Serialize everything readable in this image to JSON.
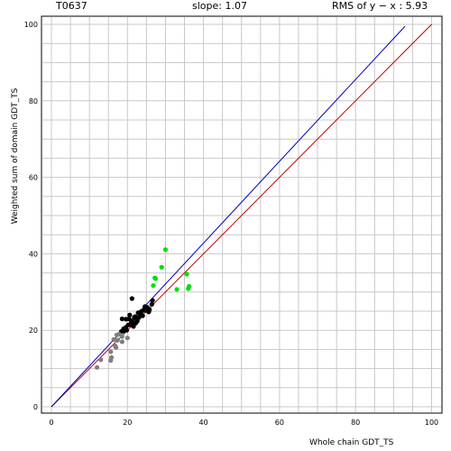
{
  "header": {
    "target": "T0637",
    "slope": "slope: 1.07",
    "rms": "RMS of  y − x : 5.93"
  },
  "chart_data": {
    "type": "scatter",
    "title": "",
    "xlabel": "Whole chain GDT_TS",
    "ylabel": "Weighted sum of domain GDT_TS",
    "xlim": [
      0,
      100
    ],
    "ylim": [
      0,
      100
    ],
    "grid": true,
    "xticks": [
      "0",
      "20",
      "40",
      "60",
      "80",
      "100"
    ],
    "yticks": [
      "0",
      "20",
      "40",
      "60",
      "80",
      "100"
    ],
    "lines": [
      {
        "kind": "identity",
        "color": "#c00000",
        "from": [
          0,
          0
        ],
        "to": [
          100,
          100
        ]
      },
      {
        "kind": "fit",
        "color": "#0000c0",
        "slope": 1.07,
        "from": [
          0,
          0
        ],
        "to": [
          93,
          99.5
        ]
      }
    ],
    "series": [
      {
        "color": "#000000",
        "points": [
          [
            21.2,
            28.3
          ],
          [
            26.6,
            27.8
          ],
          [
            25.2,
            26.0
          ],
          [
            24.4,
            25.5
          ],
          [
            24.8,
            25.2
          ],
          [
            23.6,
            24.9
          ],
          [
            22.8,
            24.6
          ],
          [
            25.6,
            24.8
          ],
          [
            23.4,
            24.2
          ],
          [
            22.0,
            23.6
          ],
          [
            23.0,
            23.3
          ],
          [
            22.2,
            22.9
          ],
          [
            21.8,
            23.4
          ],
          [
            20.4,
            23.0
          ],
          [
            21.0,
            22.5
          ],
          [
            21.4,
            22.0
          ],
          [
            22.2,
            21.9
          ],
          [
            19.6,
            22.9
          ],
          [
            21.6,
            21.0
          ],
          [
            20.8,
            21.5
          ],
          [
            19.6,
            20.8
          ],
          [
            19.0,
            20.4
          ],
          [
            19.8,
            20.0
          ],
          [
            19.0,
            19.8
          ],
          [
            18.4,
            19.7
          ],
          [
            20.6,
            24.0
          ],
          [
            24.0,
            23.8
          ],
          [
            24.6,
            26.2
          ],
          [
            22.6,
            22.4
          ],
          [
            20.2,
            21.4
          ],
          [
            25.8,
            25.4
          ],
          [
            26.4,
            26.8
          ],
          [
            23.8,
            25.0
          ],
          [
            21.0,
            21.9
          ],
          [
            22.4,
            23.4
          ],
          [
            23.2,
            24.6
          ],
          [
            18.6,
            23.0
          ]
        ]
      },
      {
        "color": "#808080",
        "points": [
          [
            18.6,
            18.4
          ],
          [
            17.8,
            19.0
          ],
          [
            17.2,
            18.8
          ],
          [
            16.4,
            17.6
          ],
          [
            17.4,
            17.4
          ],
          [
            20.0,
            18.0
          ],
          [
            18.6,
            17.0
          ],
          [
            16.8,
            15.9
          ],
          [
            15.6,
            14.4
          ],
          [
            17.0,
            15.5
          ],
          [
            15.8,
            12.9
          ],
          [
            15.6,
            12.1
          ],
          [
            13.0,
            12.3
          ],
          [
            12.0,
            10.3
          ]
        ]
      },
      {
        "color": "#00e000",
        "points": [
          [
            30.0,
            41.1
          ],
          [
            29.0,
            36.5
          ],
          [
            35.6,
            34.7
          ],
          [
            27.2,
            33.7
          ],
          [
            27.4,
            33.5
          ],
          [
            26.8,
            31.7
          ],
          [
            36.2,
            31.5
          ],
          [
            36.0,
            30.9
          ],
          [
            33.0,
            30.7
          ]
        ]
      }
    ]
  }
}
